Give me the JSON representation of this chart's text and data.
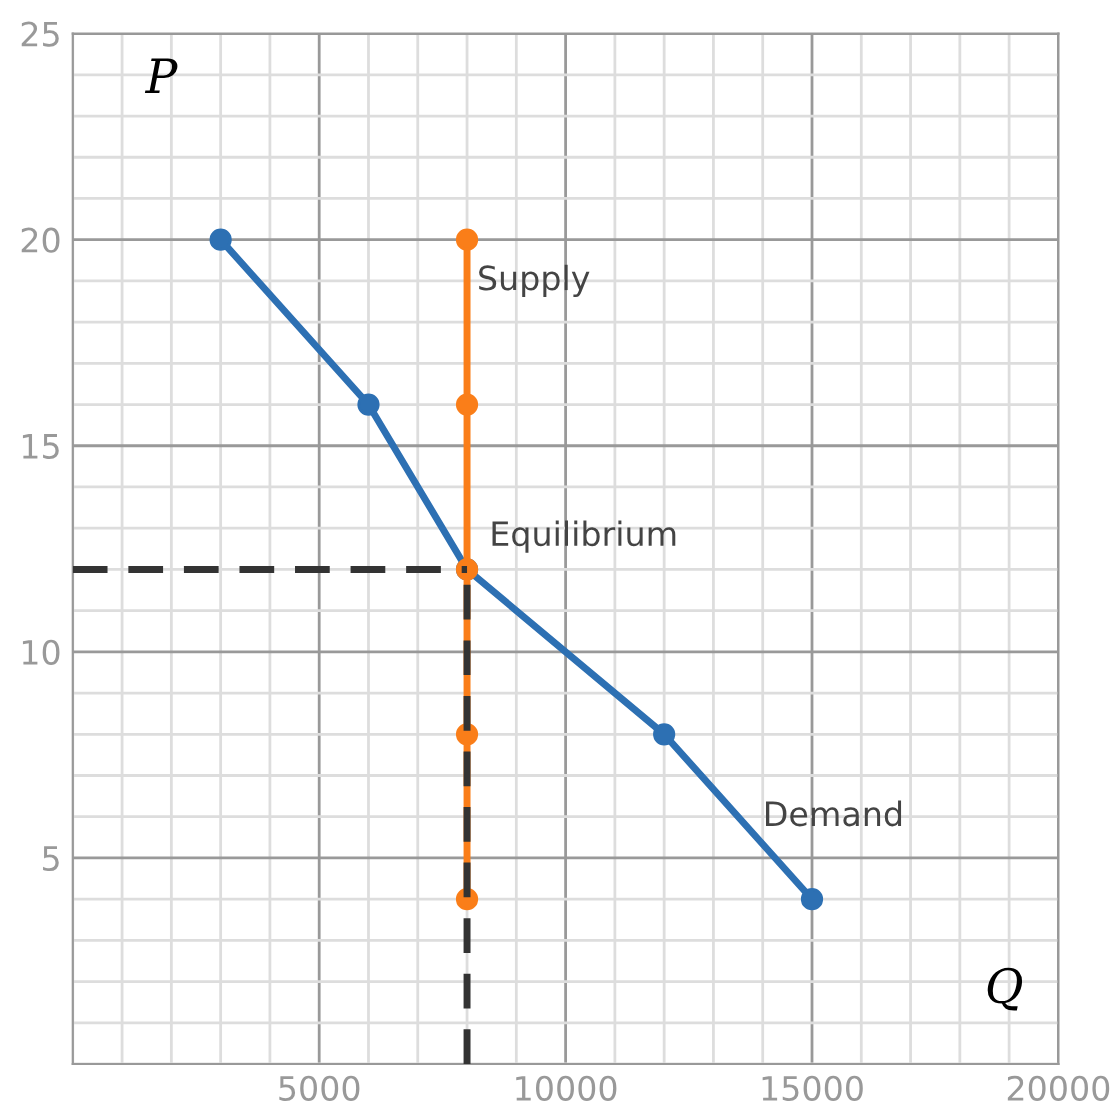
{
  "chart_data": {
    "type": "line",
    "xlabel": "Q",
    "ylabel": "P",
    "xlim": [
      0,
      20000
    ],
    "ylim": [
      0,
      25
    ],
    "xticks": [
      5000,
      10000,
      15000,
      20000
    ],
    "yticks": [
      5,
      10,
      15,
      20,
      25
    ],
    "grid": true,
    "marker": "circle",
    "series": [
      {
        "type": "line",
        "color": "#333333",
        "line_style": "dashed",
        "marker": "none",
        "x": [
          0,
          8000
        ],
        "values": [
          12,
          12
        ]
      },
      {
        "type": "line",
        "color": "#333333",
        "line_style": "dashed",
        "marker": "none",
        "x": [
          8000,
          8000
        ],
        "values": [
          0,
          12
        ]
      },
      {
        "name": "Demand",
        "color": "#2d70b3",
        "x": [
          3000,
          6000,
          8000,
          12000,
          15000
        ],
        "values": [
          20,
          16,
          12,
          8,
          4
        ]
      },
      {
        "name": "Supply",
        "color": "#fa7e19",
        "x": [
          8000,
          8000,
          8000,
          8000,
          8000
        ],
        "values": [
          20,
          16,
          12,
          8,
          4
        ]
      }
    ],
    "annotations": [
      {
        "text": "Equilibrium",
        "x": 8000,
        "y": 12
      }
    ]
  }
}
